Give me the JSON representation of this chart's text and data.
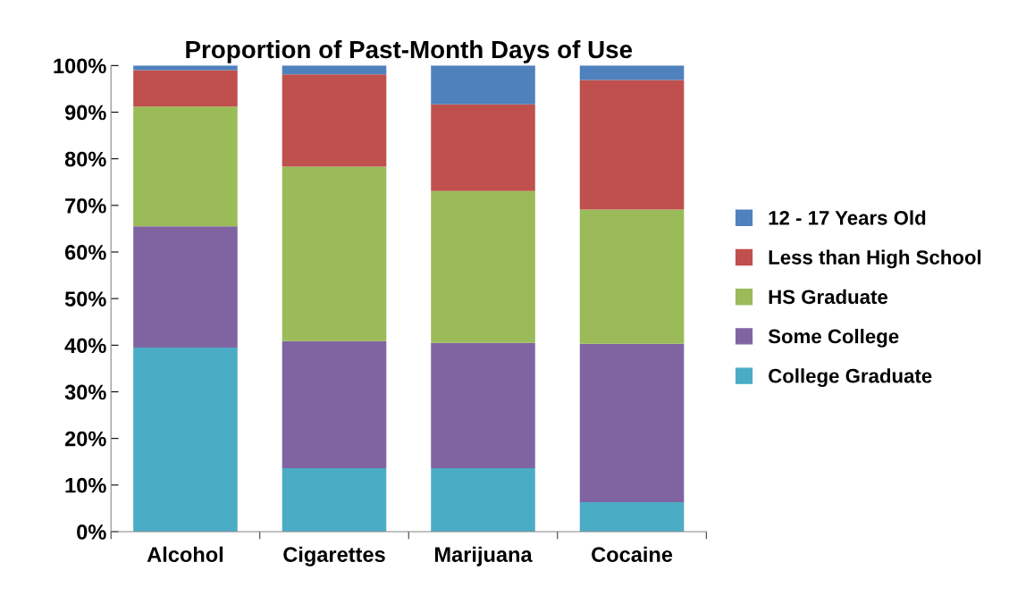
{
  "chart_data": {
    "type": "bar",
    "title": "Proportion of Past-Month Days of Use",
    "stacked": true,
    "categories": [
      "Alcohol",
      "Cigarettes",
      "Marijuana",
      "Cocaine"
    ],
    "series": [
      {
        "name": "College Graduate",
        "color": "#4bacc6",
        "values": [
          39.5,
          13.6,
          13.6,
          6.3
        ]
      },
      {
        "name": "Some College",
        "color": "#8064a2",
        "values": [
          26.0,
          27.3,
          26.9,
          34.0
        ]
      },
      {
        "name": "HS Graduate",
        "color": "#9bbb59",
        "values": [
          25.7,
          37.4,
          32.6,
          28.8
        ]
      },
      {
        "name": "Less than High School",
        "color": "#c0504d",
        "values": [
          7.8,
          19.8,
          18.6,
          27.8
        ]
      },
      {
        "name": "12 - 17 Years Old",
        "color": "#4f81bd",
        "values": [
          1.0,
          1.9,
          8.3,
          3.1
        ]
      }
    ],
    "ylim": [
      0,
      100
    ],
    "yticks": [
      {
        "value": 0,
        "label": "0%"
      },
      {
        "value": 10,
        "label": "10%"
      },
      {
        "value": 20,
        "label": "20%"
      },
      {
        "value": 30,
        "label": "30%"
      },
      {
        "value": 40,
        "label": "40%"
      },
      {
        "value": 50,
        "label": "50%"
      },
      {
        "value": 60,
        "label": "60%"
      },
      {
        "value": 70,
        "label": "70%"
      },
      {
        "value": 80,
        "label": "80%"
      },
      {
        "value": 90,
        "label": "90%"
      },
      {
        "value": 100,
        "label": "100%"
      }
    ],
    "grid": false,
    "legend": "right"
  }
}
